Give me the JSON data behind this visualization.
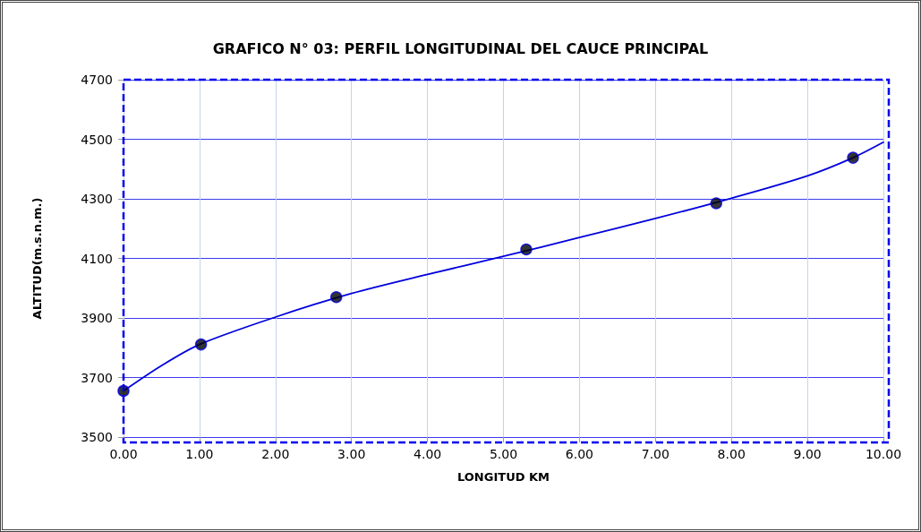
{
  "chart_data": {
    "type": "scatter",
    "title": "GRAFICO N° 03: PERFIL LONGITUDINAL DEL CAUCE PRINCIPAL",
    "xlabel": "LONGITUD KM",
    "ylabel": "ALTITUD(m.s.n.m.)",
    "series": [
      {
        "color": "#000000",
        "marker": "circle",
        "x": [
          0,
          1.02,
          2.8,
          5.3,
          7.8,
          9.6
        ],
        "values": [
          3655,
          3811,
          3970,
          4130,
          4285,
          4438
        ]
      },
      {
        "type": "line",
        "color": "#0000dd",
        "marker": "none",
        "line_style": "solid",
        "x": [
          0,
          0.5,
          1,
          2,
          3,
          4,
          5,
          6,
          7,
          8,
          9,
          9.6,
          10
        ],
        "values": [
          3655,
          3740,
          3811,
          3903,
          3982,
          4046,
          4107,
          4170,
          4234,
          4302,
          4377,
          4438,
          4490
        ]
      }
    ],
    "xlim": [
      0,
      10
    ],
    "xticks": [
      {
        "value": 0,
        "label": "0.00"
      },
      {
        "value": 1,
        "label": "1.00"
      },
      {
        "value": 2,
        "label": "2.00"
      },
      {
        "value": 3,
        "label": "3.00"
      },
      {
        "value": 4,
        "label": "4.00"
      },
      {
        "value": 5,
        "label": "5.00"
      },
      {
        "value": 6,
        "label": "6.00"
      },
      {
        "value": 7,
        "label": "7.00"
      },
      {
        "value": 8,
        "label": "8.00"
      },
      {
        "value": 9,
        "label": "9.00"
      },
      {
        "value": 10,
        "label": "10.00"
      }
    ],
    "ylim": [
      3500,
      4700
    ],
    "yticks": [
      3500,
      3700,
      3900,
      4100,
      4300,
      4500,
      4700
    ],
    "grid": true,
    "legend": false
  }
}
